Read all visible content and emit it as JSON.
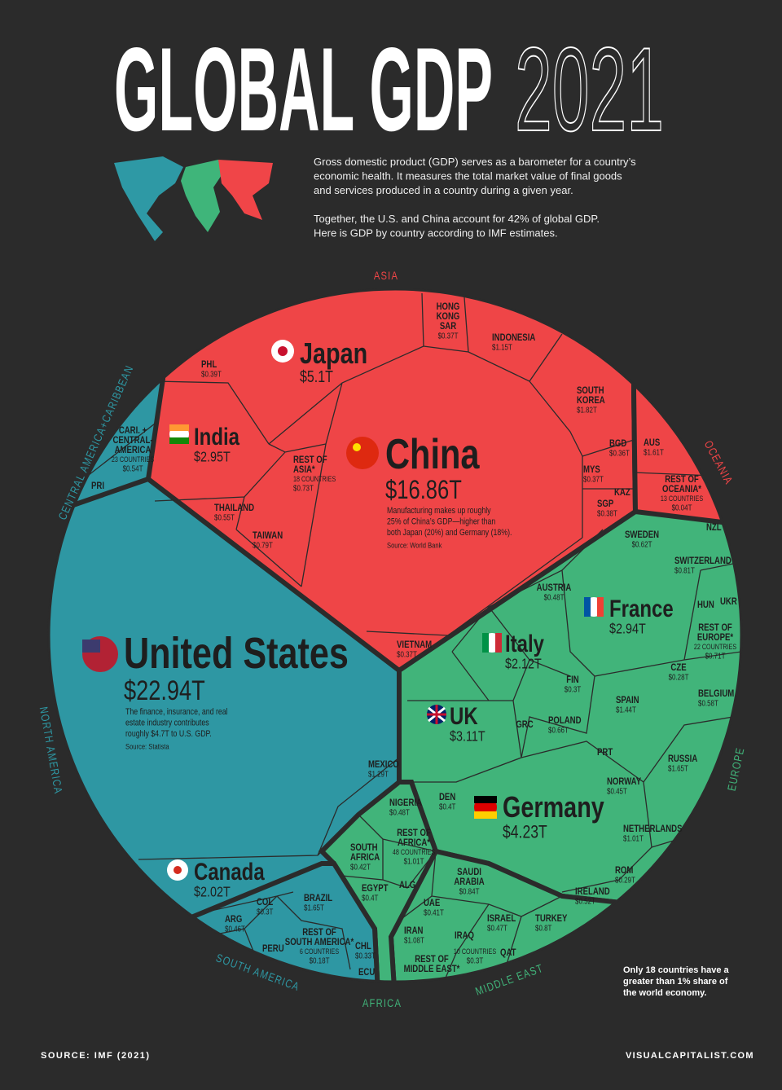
{
  "header": {
    "title": "GLOBAL GDP",
    "year": "2021"
  },
  "intro": {
    "paragraph_1": [
      "Gross domestic product (GDP) serves as a barometer for a country’s",
      "economic health. It measures the total market value of final goods",
      "and services produced in a country during a given year."
    ],
    "paragraph_2": [
      "Together, the U.S. and China account for 42% of global GDP.",
      "Here is GDP by country according to IMF estimates."
    ]
  },
  "regions": {
    "asia": "ASIA",
    "oceania": "OCEANIA",
    "europe": "EUROPE",
    "middle_east": "MIDDLE EAST",
    "africa": "AFRICA",
    "south_america": "SOUTH AMERICA",
    "north_america": "NORTH AMERICA",
    "central_america": "CENTRAL AMERICA+CARIBBEAN"
  },
  "countries": {
    "china": {
      "name": "China",
      "value": "$16.86T",
      "note": [
        "Manufacturing makes up roughly",
        "25% of China’s GDP—higher than",
        "both Japan (20%) and Germany (18%)."
      ],
      "source": "Source: World Bank"
    },
    "japan": {
      "name": "Japan",
      "value": "$5.1T"
    },
    "india": {
      "name": "India",
      "value": "$2.95T"
    },
    "united_states": {
      "name": "United States",
      "value": "$22.94T",
      "note": [
        "The finance, insurance, and real",
        "estate industry contributes",
        "roughly $4.7T to U.S. GDP."
      ],
      "source": "Source: Statista"
    },
    "canada": {
      "name": "Canada",
      "value": "$2.02T"
    },
    "france": {
      "name": "France",
      "value": "$2.94T"
    },
    "italy": {
      "name": "Italy",
      "value": "$2.12T"
    },
    "uk": {
      "name": "UK",
      "value": "$3.11T"
    },
    "germany": {
      "name": "Germany",
      "value": "$4.23T"
    },
    "hong_kong": {
      "name": [
        "HONG",
        "KONG",
        "SAR"
      ],
      "value": "$0.37T"
    },
    "indonesia": {
      "name": "INDONESIA",
      "value": "$1.15T"
    },
    "south_korea": {
      "name": [
        "SOUTH",
        "KOREA"
      ],
      "value": "$1.82T"
    },
    "phl": {
      "name": "PHL",
      "value": "$0.39T"
    },
    "rest_of_asia": {
      "name": [
        "REST OF",
        "ASIA*"
      ],
      "count": "18 COUNTRIES",
      "value": "$0.73T"
    },
    "thailand": {
      "name": "THAILAND",
      "value": "$0.55T"
    },
    "taiwan": {
      "name": "TAIWAN",
      "value": "$0.79T"
    },
    "bgd": {
      "name": "BGD",
      "value": "$0.36T"
    },
    "mys": {
      "name": "MYS",
      "value": "$0.37T"
    },
    "kaz": {
      "name": "KAZ"
    },
    "sgp": {
      "name": "SGP",
      "value": "$0.38T"
    },
    "vietnam": {
      "name": "VIETNAM",
      "value": "$0.37T"
    },
    "aus": {
      "name": "AUS",
      "value": "$1.61T"
    },
    "rest_of_oceania": {
      "name": [
        "REST OF",
        "OCEANIA*"
      ],
      "count": "13 COUNTRIES",
      "value": "$0.04T"
    },
    "nzl": {
      "name": "NZL"
    },
    "caribbean": {
      "name": [
        "CARI. +",
        "CENTRAL-",
        "AMERICA"
      ],
      "count": "23 COUNTRIES",
      "value": "$0.54T"
    },
    "pri": {
      "name": "PRI"
    },
    "sweden": {
      "name": "SWEDEN",
      "value": "$0.62T"
    },
    "switzerland": {
      "name": "SWITZERLAND",
      "value": "$0.81T"
    },
    "austria": {
      "name": "AUSTRIA",
      "value": "$0.48T"
    },
    "hun": {
      "name": "HUN"
    },
    "ukr": {
      "name": "UKR"
    },
    "rest_of_europe": {
      "name": [
        "REST OF",
        "EUROPE*"
      ],
      "count": "22 COUNTRIES",
      "value": "$0.71T"
    },
    "cze": {
      "name": "CZE",
      "value": "$0.28T"
    },
    "fin": {
      "name": "FIN",
      "value": "$0.3T"
    },
    "belgium": {
      "name": "BELGIUM",
      "value": "$0.58T"
    },
    "spain": {
      "name": "SPAIN",
      "value": "$1.44T"
    },
    "poland": {
      "name": "POLAND",
      "value": "$0.66T"
    },
    "grc": {
      "name": "GRC"
    },
    "prt": {
      "name": "PRT"
    },
    "russia": {
      "name": "RUSSIA",
      "value": "$1.65T"
    },
    "norway": {
      "name": "NORWAY",
      "value": "$0.45T"
    },
    "netherlands": {
      "name": "NETHERLANDS",
      "value": "$1.01T"
    },
    "rom": {
      "name": "ROM",
      "value": "$0.29T"
    },
    "ireland": {
      "name": "IRELAND",
      "value": "$0.52T"
    },
    "den": {
      "name": "DEN",
      "value": "$0.4T"
    },
    "mexico": {
      "name": "MEXICO",
      "value": "$1.29T"
    },
    "col": {
      "name": "COL",
      "value": "$0.3T"
    },
    "brazil": {
      "name": "BRAZIL",
      "value": "$1.65T"
    },
    "arg": {
      "name": "ARG",
      "value": "$0.46T"
    },
    "peru": {
      "name": "PERU"
    },
    "rest_of_south_america": {
      "name": [
        "REST OF",
        "SOUTH AMERICA*"
      ],
      "count": "6 COUNTRIES",
      "value": "$0.18T"
    },
    "chl": {
      "name": "CHL",
      "value": "$0.33T"
    },
    "ecu": {
      "name": "ECU"
    },
    "nigeria": {
      "name": "NIGERIA",
      "value": "$0.48T"
    },
    "rest_of_africa": {
      "name": [
        "REST OF",
        "AFRICA*"
      ],
      "count": "48 COUNTRIES",
      "value": "$1.01T"
    },
    "south_africa": {
      "name": [
        "SOUTH",
        "AFRICA"
      ],
      "value": "$0.42T"
    },
    "egypt": {
      "name": "EGYPT",
      "value": "$0.4T"
    },
    "alg": {
      "name": "ALG"
    },
    "saudi_arabia": {
      "name": [
        "SAUDI",
        "ARABIA"
      ],
      "value": "$0.84T"
    },
    "uae": {
      "name": "UAE",
      "value": "$0.41T"
    },
    "israel": {
      "name": "ISRAEL",
      "value": "$0.47T"
    },
    "turkey": {
      "name": "TURKEY",
      "value": "$0.8T"
    },
    "iran": {
      "name": "IRAN",
      "value": "$1.08T"
    },
    "iraq": {
      "name": "IRAQ"
    },
    "rest_of_middle_east": {
      "name": [
        "REST OF",
        "MIDDLE EAST*"
      ]
    },
    "middle_east_other": {
      "count": "10 COUNTRIES",
      "value": "$0.3T"
    },
    "qat": {
      "name": "QAT"
    }
  },
  "side_note": [
    "Only 18 countries have a",
    "greater than 1% share of",
    "the world economy."
  ],
  "footer": {
    "source": "SOURCE: IMF (2021)",
    "brand": "VISUALCAPITALIST.COM"
  }
}
